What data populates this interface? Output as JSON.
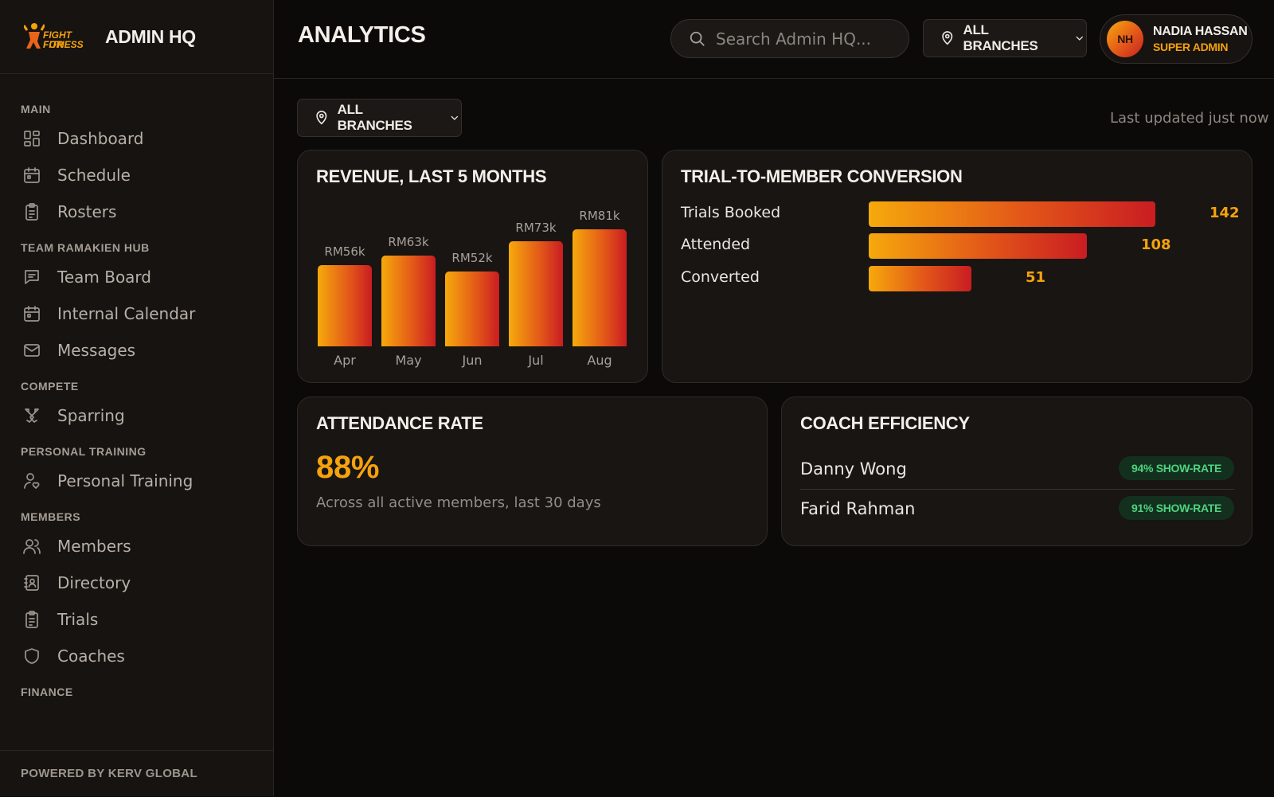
{
  "brand": {
    "logo_line1": "FIGHT FOR",
    "logo_line2": "FITNESS",
    "title": "ADMIN HQ"
  },
  "sidebar": {
    "sections": [
      {
        "label": "MAIN",
        "items": [
          {
            "label": "Dashboard",
            "icon": "dashboard-icon"
          },
          {
            "label": "Schedule",
            "icon": "calendar-icon"
          },
          {
            "label": "Rosters",
            "icon": "clipboard-icon"
          }
        ]
      },
      {
        "label": "TEAM RAMAKIEN HUB",
        "items": [
          {
            "label": "Team Board",
            "icon": "message-square-icon"
          },
          {
            "label": "Internal Calendar",
            "icon": "calendar-icon"
          },
          {
            "label": "Messages",
            "icon": "mail-icon"
          }
        ]
      },
      {
        "label": "COMPETE",
        "items": [
          {
            "label": "Sparring",
            "icon": "swords-icon"
          }
        ]
      },
      {
        "label": "PERSONAL TRAINING",
        "items": [
          {
            "label": "Personal Training",
            "icon": "user-heart-icon"
          }
        ]
      },
      {
        "label": "MEMBERS",
        "items": [
          {
            "label": "Members",
            "icon": "users-icon"
          },
          {
            "label": "Directory",
            "icon": "contact-book-icon"
          },
          {
            "label": "Trials",
            "icon": "clipboard-icon"
          },
          {
            "label": "Coaches",
            "icon": "shield-icon"
          }
        ]
      },
      {
        "label": "FINANCE",
        "items": []
      }
    ],
    "footer": "POWERED BY KERV GLOBAL"
  },
  "header": {
    "title": "ANALYTICS",
    "search_placeholder": "Search Admin HQ...",
    "branch_label": "ALL BRANCHES",
    "user": {
      "initials": "NH",
      "name": "NADIA HASSAN",
      "role": "SUPER ADMIN"
    }
  },
  "main": {
    "branch_label": "ALL BRANCHES",
    "last_updated": "Last updated just now"
  },
  "revenue": {
    "title": "REVENUE, LAST 5 MONTHS",
    "chart_data": {
      "type": "bar",
      "title": "REVENUE, LAST 5 MONTHS",
      "categories": [
        "Apr",
        "May",
        "Jun",
        "Jul",
        "Aug"
      ],
      "values": [
        56,
        63,
        52,
        73,
        81
      ],
      "value_labels": [
        "RM56k",
        "RM63k",
        "RM52k",
        "RM73k",
        "RM81k"
      ],
      "ylim": [
        0,
        81
      ],
      "grid": false
    }
  },
  "conversion": {
    "title": "TRIAL-TO-MEMBER CONVERSION",
    "chart_data": {
      "type": "bar",
      "orientation": "horizontal",
      "title": "TRIAL-TO-MEMBER CONVERSION",
      "categories": [
        "Trials Booked",
        "Attended",
        "Converted"
      ],
      "values": [
        142,
        108,
        51
      ],
      "xlim": [
        0,
        142
      ]
    }
  },
  "attendance": {
    "title": "ATTENDANCE RATE",
    "value": "88%",
    "caption": "Across all active members, last 30 days"
  },
  "coach": {
    "title": "COACH EFFICIENCY",
    "rows": [
      {
        "name": "Danny Wong",
        "badge": "94% SHOW-RATE"
      },
      {
        "name": "Farid Rahman",
        "badge": "91% SHOW-RATE"
      }
    ]
  },
  "colors": {
    "accent": "#f5a20c",
    "gradient_start": "#f6a90c",
    "gradient_end": "#c91d22",
    "success": "#4ed37f"
  }
}
